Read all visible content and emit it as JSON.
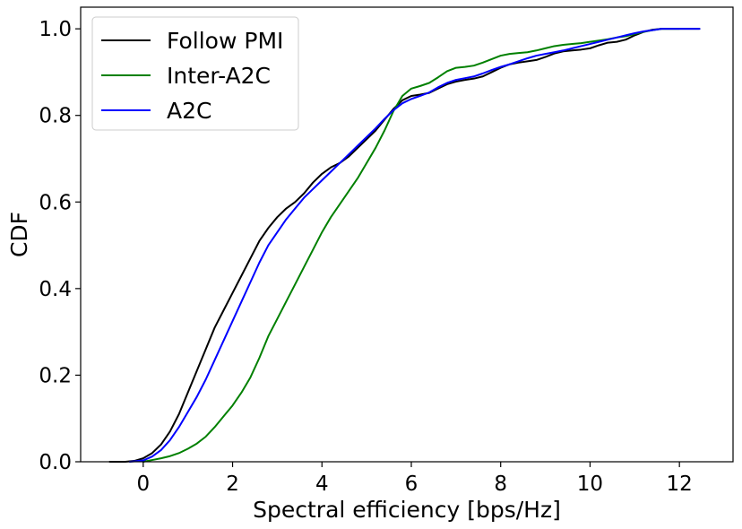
{
  "chart_data": {
    "type": "line",
    "title": "",
    "xlabel": "Spectral efficiency [bps/Hz]",
    "ylabel": "CDF",
    "xlim": [
      -1.4,
      13.2
    ],
    "ylim": [
      0.0,
      1.05
    ],
    "xticks": [
      0,
      2,
      4,
      6,
      8,
      10,
      12
    ],
    "yticks": [
      0.0,
      0.2,
      0.4,
      0.6,
      0.8,
      1.0
    ],
    "xtick_labels": [
      "0",
      "2",
      "4",
      "6",
      "8",
      "10",
      "12"
    ],
    "ytick_labels": [
      "0.0",
      "0.2",
      "0.4",
      "0.6",
      "0.8",
      "1.0"
    ],
    "grid": false,
    "legend_position": "top-left",
    "series": [
      {
        "name": "Follow PMI",
        "color": "#000000",
        "points": [
          [
            -0.75,
            0.0
          ],
          [
            -0.4,
            0.0
          ],
          [
            -0.2,
            0.002
          ],
          [
            0.0,
            0.008
          ],
          [
            0.2,
            0.02
          ],
          [
            0.4,
            0.04
          ],
          [
            0.6,
            0.07
          ],
          [
            0.8,
            0.11
          ],
          [
            1.0,
            0.16
          ],
          [
            1.2,
            0.21
          ],
          [
            1.4,
            0.26
          ],
          [
            1.6,
            0.31
          ],
          [
            1.8,
            0.35
          ],
          [
            2.0,
            0.39
          ],
          [
            2.2,
            0.43
          ],
          [
            2.4,
            0.47
          ],
          [
            2.6,
            0.51
          ],
          [
            2.8,
            0.54
          ],
          [
            3.0,
            0.565
          ],
          [
            3.2,
            0.585
          ],
          [
            3.4,
            0.6
          ],
          [
            3.6,
            0.62
          ],
          [
            3.8,
            0.645
          ],
          [
            4.0,
            0.665
          ],
          [
            4.2,
            0.68
          ],
          [
            4.4,
            0.69
          ],
          [
            4.6,
            0.705
          ],
          [
            4.8,
            0.725
          ],
          [
            5.0,
            0.745
          ],
          [
            5.2,
            0.765
          ],
          [
            5.4,
            0.79
          ],
          [
            5.6,
            0.815
          ],
          [
            5.8,
            0.835
          ],
          [
            6.0,
            0.845
          ],
          [
            6.2,
            0.848
          ],
          [
            6.4,
            0.852
          ],
          [
            6.6,
            0.862
          ],
          [
            6.8,
            0.872
          ],
          [
            7.0,
            0.878
          ],
          [
            7.2,
            0.882
          ],
          [
            7.4,
            0.885
          ],
          [
            7.6,
            0.89
          ],
          [
            7.8,
            0.9
          ],
          [
            8.0,
            0.91
          ],
          [
            8.2,
            0.918
          ],
          [
            8.4,
            0.922
          ],
          [
            8.6,
            0.925
          ],
          [
            8.8,
            0.928
          ],
          [
            9.0,
            0.935
          ],
          [
            9.2,
            0.943
          ],
          [
            9.4,
            0.948
          ],
          [
            9.6,
            0.95
          ],
          [
            9.8,
            0.952
          ],
          [
            10.0,
            0.955
          ],
          [
            10.2,
            0.962
          ],
          [
            10.4,
            0.968
          ],
          [
            10.6,
            0.97
          ],
          [
            10.8,
            0.975
          ],
          [
            11.0,
            0.985
          ],
          [
            11.2,
            0.993
          ],
          [
            11.4,
            0.998
          ],
          [
            11.6,
            1.0
          ],
          [
            12.0,
            1.0
          ],
          [
            12.45,
            1.0
          ]
        ]
      },
      {
        "name": "Inter-A2C",
        "color": "#008000",
        "points": [
          [
            0.0,
            0.0
          ],
          [
            0.2,
            0.004
          ],
          [
            0.4,
            0.008
          ],
          [
            0.6,
            0.013
          ],
          [
            0.8,
            0.02
          ],
          [
            1.0,
            0.03
          ],
          [
            1.2,
            0.042
          ],
          [
            1.4,
            0.058
          ],
          [
            1.6,
            0.08
          ],
          [
            1.8,
            0.105
          ],
          [
            2.0,
            0.13
          ],
          [
            2.2,
            0.16
          ],
          [
            2.4,
            0.195
          ],
          [
            2.6,
            0.24
          ],
          [
            2.8,
            0.29
          ],
          [
            3.0,
            0.33
          ],
          [
            3.2,
            0.37
          ],
          [
            3.4,
            0.41
          ],
          [
            3.6,
            0.45
          ],
          [
            3.8,
            0.49
          ],
          [
            4.0,
            0.53
          ],
          [
            4.2,
            0.565
          ],
          [
            4.4,
            0.595
          ],
          [
            4.6,
            0.625
          ],
          [
            4.8,
            0.655
          ],
          [
            5.0,
            0.69
          ],
          [
            5.2,
            0.725
          ],
          [
            5.4,
            0.765
          ],
          [
            5.6,
            0.81
          ],
          [
            5.8,
            0.845
          ],
          [
            6.0,
            0.862
          ],
          [
            6.2,
            0.868
          ],
          [
            6.4,
            0.875
          ],
          [
            6.6,
            0.888
          ],
          [
            6.8,
            0.902
          ],
          [
            7.0,
            0.91
          ],
          [
            7.2,
            0.912
          ],
          [
            7.4,
            0.915
          ],
          [
            7.6,
            0.922
          ],
          [
            7.8,
            0.93
          ],
          [
            8.0,
            0.938
          ],
          [
            8.2,
            0.942
          ],
          [
            8.4,
            0.944
          ],
          [
            8.6,
            0.946
          ],
          [
            8.8,
            0.95
          ],
          [
            9.0,
            0.955
          ],
          [
            9.2,
            0.96
          ],
          [
            9.4,
            0.963
          ],
          [
            9.6,
            0.965
          ],
          [
            9.8,
            0.967
          ],
          [
            10.0,
            0.97
          ],
          [
            10.2,
            0.973
          ],
          [
            10.4,
            0.976
          ],
          [
            10.6,
            0.98
          ],
          [
            10.8,
            0.983
          ],
          [
            11.0,
            0.988
          ],
          [
            11.2,
            0.993
          ],
          [
            11.4,
            0.997
          ],
          [
            11.6,
            1.0
          ],
          [
            12.0,
            1.0
          ]
        ]
      },
      {
        "name": "A2C",
        "color": "#0000ff",
        "points": [
          [
            -0.3,
            0.0
          ],
          [
            0.0,
            0.003
          ],
          [
            0.2,
            0.012
          ],
          [
            0.4,
            0.027
          ],
          [
            0.6,
            0.05
          ],
          [
            0.8,
            0.08
          ],
          [
            1.0,
            0.115
          ],
          [
            1.2,
            0.15
          ],
          [
            1.4,
            0.19
          ],
          [
            1.6,
            0.235
          ],
          [
            1.8,
            0.28
          ],
          [
            2.0,
            0.325
          ],
          [
            2.2,
            0.37
          ],
          [
            2.4,
            0.415
          ],
          [
            2.6,
            0.46
          ],
          [
            2.8,
            0.5
          ],
          [
            3.0,
            0.53
          ],
          [
            3.2,
            0.56
          ],
          [
            3.4,
            0.585
          ],
          [
            3.6,
            0.61
          ],
          [
            3.8,
            0.63
          ],
          [
            4.0,
            0.65
          ],
          [
            4.2,
            0.67
          ],
          [
            4.4,
            0.69
          ],
          [
            4.6,
            0.71
          ],
          [
            4.8,
            0.73
          ],
          [
            5.0,
            0.75
          ],
          [
            5.2,
            0.77
          ],
          [
            5.4,
            0.792
          ],
          [
            5.6,
            0.812
          ],
          [
            5.8,
            0.828
          ],
          [
            6.0,
            0.838
          ],
          [
            6.2,
            0.845
          ],
          [
            6.4,
            0.853
          ],
          [
            6.6,
            0.865
          ],
          [
            6.8,
            0.875
          ],
          [
            7.0,
            0.882
          ],
          [
            7.2,
            0.886
          ],
          [
            7.4,
            0.89
          ],
          [
            7.6,
            0.897
          ],
          [
            7.8,
            0.905
          ],
          [
            8.0,
            0.912
          ],
          [
            8.2,
            0.918
          ],
          [
            8.4,
            0.925
          ],
          [
            8.6,
            0.932
          ],
          [
            8.8,
            0.938
          ],
          [
            9.0,
            0.942
          ],
          [
            9.2,
            0.946
          ],
          [
            9.4,
            0.95
          ],
          [
            9.6,
            0.955
          ],
          [
            9.8,
            0.96
          ],
          [
            10.0,
            0.965
          ],
          [
            10.2,
            0.97
          ],
          [
            10.4,
            0.975
          ],
          [
            10.6,
            0.98
          ],
          [
            10.8,
            0.985
          ],
          [
            11.0,
            0.99
          ],
          [
            11.2,
            0.994
          ],
          [
            11.4,
            0.997
          ],
          [
            11.6,
            1.0
          ],
          [
            12.0,
            1.0
          ],
          [
            12.45,
            1.0
          ]
        ]
      }
    ]
  }
}
